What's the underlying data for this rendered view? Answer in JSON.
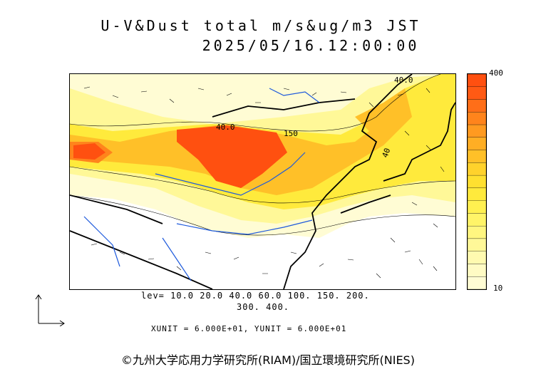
{
  "title_line1": "U-V&Dust total m/s&ug/m3 JST",
  "title_line2": "2025/05/16.12:00:00",
  "map": {
    "contour_labels": [
      "40.0",
      "150",
      "40.0",
      "40"
    ]
  },
  "legend": {
    "top_label": "400",
    "bottom_label": "10",
    "colors": [
      "#ff5010",
      "#ff5a14",
      "#ff6e18",
      "#ff841c",
      "#ff9a20",
      "#ffae24",
      "#ffc028",
      "#ffd22c",
      "#ffe030",
      "#ffea3c",
      "#fff050",
      "#fff468",
      "#fff680",
      "#fff898",
      "#fffab0",
      "#fffbc4",
      "#fffcd4"
    ]
  },
  "levels_line1": "lev= 10.0 20.0 40.0 60.0 100. 150. 200.",
  "levels_line2": "300. 400.",
  "units_line": "XUNIT = 6.000E+01, YUNIT = 6.000E+01",
  "copyright": "©九州大学応用力学研究所(RIAM)/国立環境研究所(NIES)"
}
